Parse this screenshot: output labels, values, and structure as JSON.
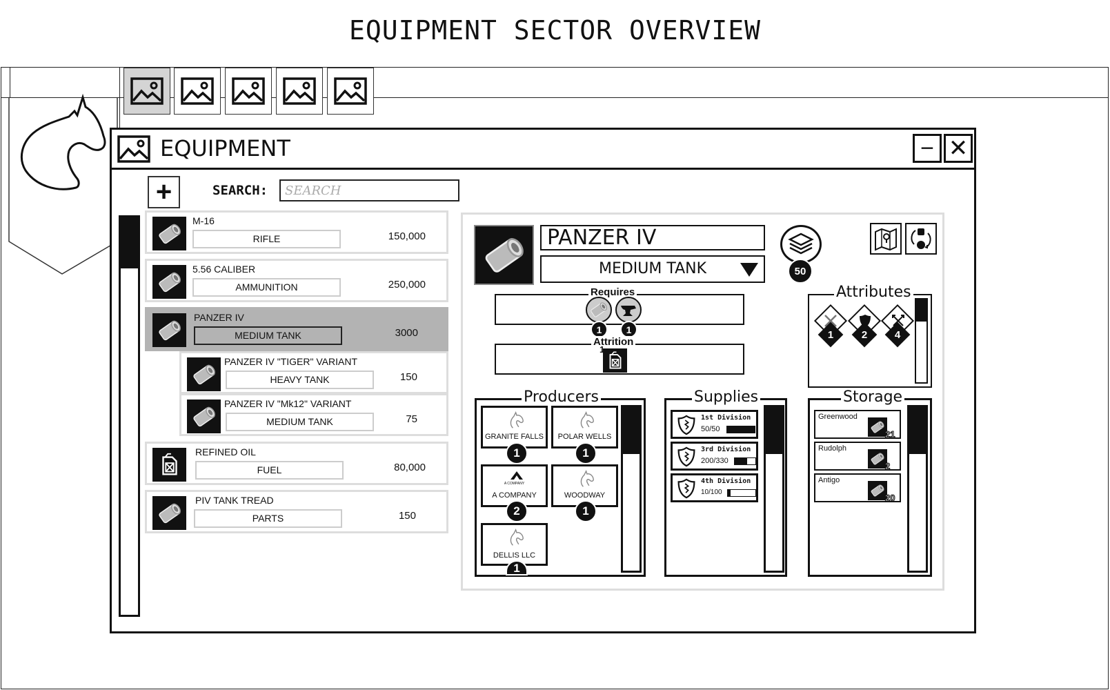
{
  "page_title": "EQUIPMENT SECTOR OVERVIEW",
  "top_tabs": [
    {
      "icon": "image-icon",
      "active": true
    },
    {
      "icon": "image-icon",
      "active": false
    },
    {
      "icon": "image-icon",
      "active": false
    },
    {
      "icon": "image-icon",
      "active": false
    },
    {
      "icon": "image-icon",
      "active": false
    }
  ],
  "window": {
    "title": "EQUIPMENT",
    "minimize_label": "−",
    "close_label": "✕"
  },
  "toolbar": {
    "add_label": "+",
    "search_label": "SEARCH:",
    "search_placeholder": "SEARCH"
  },
  "list": {
    "items": [
      {
        "name": "M-16",
        "type": "RIFLE",
        "qty": "150,000",
        "icon": "pipe-icon"
      },
      {
        "name": "5.56 CALIBER",
        "type": "AMMUNITION",
        "qty": "250,000",
        "icon": "pipe-icon"
      },
      {
        "name": "PANZER IV",
        "type": "MEDIUM TANK",
        "qty": "3000",
        "icon": "pipe-icon",
        "selected": true
      },
      {
        "name": "PANZER IV \"TIGER\" VARIANT",
        "type": "HEAVY TANK",
        "qty": "150",
        "icon": "pipe-icon",
        "sub": true
      },
      {
        "name": "PANZER IV \"Mk12\" VARIANT",
        "type": "MEDIUM TANK",
        "qty": "75",
        "icon": "pipe-icon",
        "sub": true
      },
      {
        "name": "REFINED OIL",
        "type": "FUEL",
        "qty": "80,000",
        "icon": "fuel-can-icon"
      },
      {
        "name": "PIV TANK TREAD",
        "type": "PARTS",
        "qty": "150",
        "icon": "pipe-icon"
      }
    ]
  },
  "detail": {
    "name": "PANZER IV",
    "type": "MEDIUM TANK",
    "stack_count": "50",
    "requires": {
      "label": "Requires",
      "items": [
        {
          "icon": "pipe-icon",
          "count": "1"
        },
        {
          "icon": "anvil-icon",
          "count": "1"
        }
      ]
    },
    "attrition": {
      "label": "Attrition",
      "items": [
        {
          "icon": "fuel-can-icon",
          "count": "1"
        }
      ]
    },
    "attributes": {
      "label": "Attributes",
      "items": [
        {
          "icon": "crossed-swords-icon",
          "value": "1"
        },
        {
          "icon": "shield-icon",
          "value": "2"
        },
        {
          "icon": "crosshair-icon",
          "value": "4"
        }
      ]
    },
    "producers": {
      "label": "Producers",
      "items": [
        {
          "name": "GRANITE FALLS",
          "count": "1",
          "logo": "horse-icon"
        },
        {
          "name": "POLAR WELLS",
          "count": "1",
          "logo": "horse-icon"
        },
        {
          "name": "A COMPANY",
          "count": "2",
          "logo": "a-company-logo",
          "logo_text": "A COMPANY"
        },
        {
          "name": "WOODWAY",
          "count": "1",
          "logo": "horse-icon"
        },
        {
          "name": "DELLIS LLC",
          "count": "1",
          "logo": "horse-icon"
        }
      ]
    },
    "supplies": {
      "label": "Supplies",
      "items": [
        {
          "name": "1st Division",
          "value": "50/50",
          "fill": 1.0,
          "rank": "I"
        },
        {
          "name": "3rd Division",
          "value": "200/330",
          "fill": 0.6,
          "rank": "III"
        },
        {
          "name": "4th Division",
          "value": "10/100",
          "fill": 0.1,
          "rank": "IV"
        }
      ]
    },
    "storage": {
      "label": "Storage",
      "items": [
        {
          "name": "Greenwood",
          "count": "21"
        },
        {
          "name": "Rudolph",
          "count": "2"
        },
        {
          "name": "Antigo",
          "count": "20"
        }
      ]
    }
  },
  "colors": {
    "selected_row": "#b3b3b3",
    "border_light": "#dddddd",
    "ink": "#111111"
  }
}
